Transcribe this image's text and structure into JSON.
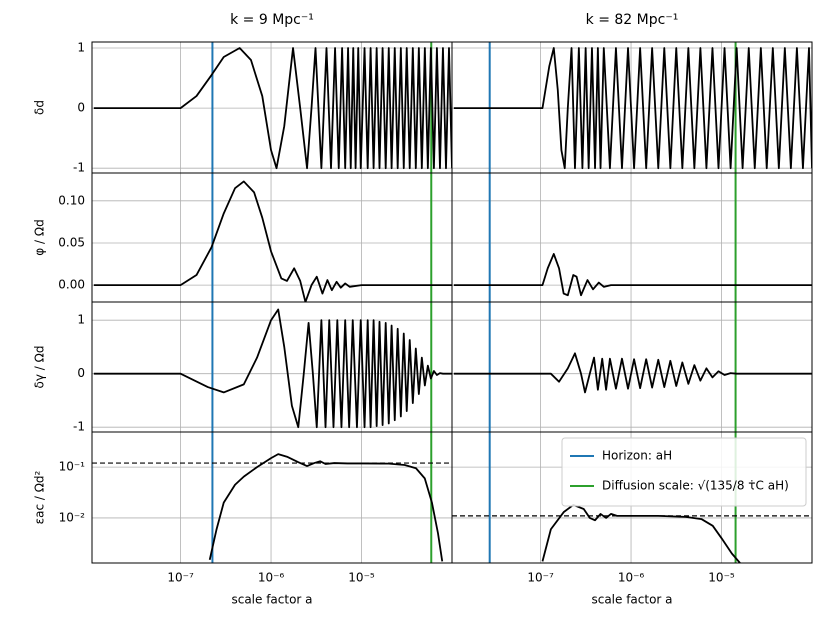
{
  "chart_data": [
    {
      "type": "line",
      "title": "k = 9 Mpc⁻¹",
      "ylabel": "δd",
      "log_x": true,
      "grid": true,
      "show_xtick_labels": false,
      "show_ytick_labels": true,
      "xlim": [
        1.05e-08,
        0.0001
      ],
      "ylim": [
        -1.08,
        1.1
      ],
      "xticks": [
        {
          "value": 1e-07,
          "label": "10⁻⁷"
        },
        {
          "value": 1e-06,
          "label": "10⁻⁶"
        },
        {
          "value": 1e-05,
          "label": "10⁻⁵"
        }
      ],
      "yticks": [
        -1,
        0,
        1
      ],
      "vlines": [
        {
          "value": 2.25e-07,
          "color": "#1f77b4"
        },
        {
          "value": 5.9e-05,
          "color": "#2ca02c"
        }
      ],
      "x": [
        1.1e-08,
        1e-07,
        1.5e-07,
        2.2e-07,
        3e-07,
        4.5e-07,
        6e-07,
        8e-07,
        1e-06,
        1.15e-06,
        1.4e-06,
        1.75e-06,
        2.1e-06,
        2.5e-06,
        2.8e-06,
        3.1e-06,
        3.6e-06,
        4.1e-06,
        4.6e-06,
        5.1e-06,
        5.6e-06,
        6.1e-06,
        6.6e-06,
        7.1e-06,
        7.6e-06,
        8.1e-06,
        8.6e-06,
        9.2e-06,
        9.8e-06,
        1.08e-05,
        1.17e-05,
        1.26e-05,
        1.36e-05,
        1.47e-05,
        1.58e-05,
        1.71e-05,
        1.85e-05,
        2e-05,
        2.15e-05,
        2.33e-05,
        2.51e-05,
        2.72e-05,
        2.93e-05,
        3.16e-05,
        3.41e-05,
        3.69e-05,
        3.98e-05,
        4.3e-05,
        4.64e-05,
        5.01e-05,
        5.41e-05,
        5.84e-05,
        6.31e-05,
        6.81e-05,
        7.36e-05,
        7.94e-05,
        8.58e-05,
        9.26e-05,
        0.0001
      ],
      "series": [
        {
          "color": "#000000",
          "values": [
            0,
            0,
            0.2,
            0.55,
            0.85,
            1,
            0.8,
            0.2,
            -0.7,
            -1,
            -0.3,
            1,
            0,
            -1,
            0,
            1,
            -1,
            1,
            -1,
            1,
            -1,
            1,
            -1,
            1,
            -1,
            1,
            -1,
            1,
            -1,
            1,
            -1,
            1,
            -1,
            1,
            -1,
            1,
            -1,
            1,
            -1,
            1,
            -1,
            1,
            -1,
            1,
            -1,
            1,
            -1,
            1,
            -1,
            1,
            -1,
            1,
            -1,
            1,
            -1,
            1,
            -1,
            1,
            -1
          ]
        }
      ]
    },
    {
      "type": "line",
      "title": "k = 82 Mpc⁻¹",
      "log_x": true,
      "grid": true,
      "show_xtick_labels": false,
      "show_ytick_labels": false,
      "xlim": [
        1.05e-08,
        0.0001
      ],
      "ylim": [
        -1.08,
        1.1
      ],
      "xticks": [
        {
          "value": 1e-07,
          "label": "10⁻⁷"
        },
        {
          "value": 1e-06,
          "label": "10⁻⁶"
        },
        {
          "value": 1e-05,
          "label": "10⁻⁵"
        }
      ],
      "yticks": [
        -1,
        0,
        1
      ],
      "vlines": [
        {
          "value": 2.74e-08,
          "color": "#1f77b4"
        },
        {
          "value": 1.43e-05,
          "color": "#2ca02c"
        }
      ],
      "x": [
        1.1e-08,
        1.05e-07,
        1.25e-07,
        1.4e-07,
        1.55e-07,
        1.7e-07,
        1.85e-07,
        2e-07,
        2.2e-07,
        2.4e-07,
        2.65e-07,
        2.9e-07,
        3.15e-07,
        3.4e-07,
        3.7e-07,
        4e-07,
        4.3e-07,
        4.6e-07,
        5e-07,
        5.84e-07,
        6.81e-07,
        7.94e-07,
        9.26e-07,
        1.08e-06,
        1.26e-06,
        1.47e-06,
        1.71e-06,
        2e-06,
        2.33e-06,
        2.72e-06,
        3.16e-06,
        3.69e-06,
        4.3e-06,
        5.01e-06,
        5.84e-06,
        6.81e-06,
        7.94e-06,
        9.26e-06,
        1.08e-05,
        1.26e-05,
        1.47e-05,
        1.71e-05,
        2e-05,
        2.33e-05,
        2.72e-05,
        3.16e-05,
        3.69e-05,
        4.3e-05,
        5.01e-05,
        5.84e-05,
        6.81e-05,
        7.94e-05,
        9.26e-05,
        0.0001
      ],
      "series": [
        {
          "color": "#000000",
          "values": [
            0,
            0,
            0.7,
            1,
            0.3,
            -0.7,
            -1,
            0,
            1,
            -1,
            1,
            -1,
            1,
            -1,
            1,
            -1,
            1,
            -1,
            1,
            -1,
            1,
            -1,
            1,
            -1,
            1,
            -1,
            1,
            -1,
            1,
            -1,
            1,
            -1,
            1,
            -1,
            1,
            -1,
            1,
            -1,
            1,
            -1,
            1,
            -1,
            1,
            -1,
            1,
            -1,
            1,
            -1,
            1,
            -1,
            1,
            -1,
            1,
            -1
          ]
        }
      ]
    },
    {
      "type": "line",
      "ylabel": "φ / Ωd",
      "log_x": true,
      "grid": true,
      "show_xtick_labels": false,
      "show_ytick_labels": true,
      "xlim": [
        1.05e-08,
        0.0001
      ],
      "ylim": [
        -0.02,
        0.133
      ],
      "xticks": [
        {
          "value": 1e-07,
          "label": "10⁻⁷"
        },
        {
          "value": 1e-06,
          "label": "10⁻⁶"
        },
        {
          "value": 1e-05,
          "label": "10⁻⁵"
        }
      ],
      "yticks": [
        {
          "value": 0,
          "label": "0.00"
        },
        {
          "value": 0.05,
          "label": "0.05"
        },
        {
          "value": 0.1,
          "label": "0.10"
        }
      ],
      "vlines": [
        {
          "value": 2.25e-07,
          "color": "#1f77b4"
        },
        {
          "value": 5.9e-05,
          "color": "#2ca02c"
        }
      ],
      "x": [
        1.1e-08,
        1e-07,
        1.5e-07,
        2.2e-07,
        3e-07,
        4e-07,
        5e-07,
        6.5e-07,
        8e-07,
        1e-06,
        1.3e-06,
        1.5e-06,
        1.8e-06,
        2.1e-06,
        2.4e-06,
        2.8e-06,
        3.2e-06,
        3.7e-06,
        4.2e-06,
        4.7e-06,
        5.3e-06,
        5.9e-06,
        6.6e-06,
        7.4e-06,
        1e-05,
        0.0001
      ],
      "series": [
        {
          "color": "#000000",
          "values": [
            0,
            0,
            0.012,
            0.045,
            0.085,
            0.115,
            0.123,
            0.11,
            0.08,
            0.04,
            0.008,
            0.005,
            0.02,
            0.005,
            -0.02,
            0,
            0.01,
            -0.01,
            0.006,
            -0.006,
            0.004,
            -0.003,
            0.002,
            -0.002,
            0,
            0
          ]
        }
      ]
    },
    {
      "type": "line",
      "log_x": true,
      "grid": true,
      "show_xtick_labels": false,
      "show_ytick_labels": false,
      "xlim": [
        1.05e-08,
        0.0001
      ],
      "ylim": [
        -0.02,
        0.133
      ],
      "xticks": [
        {
          "value": 1e-07,
          "label": "10⁻⁷"
        },
        {
          "value": 1e-06,
          "label": "10⁻⁶"
        },
        {
          "value": 1e-05,
          "label": "10⁻⁵"
        }
      ],
      "yticks": [
        {
          "value": 0,
          "label": "0.00"
        },
        {
          "value": 0.05,
          "label": "0.05"
        },
        {
          "value": 0.1,
          "label": "0.10"
        }
      ],
      "vlines": [
        {
          "value": 2.74e-08,
          "color": "#1f77b4"
        },
        {
          "value": 1.43e-05,
          "color": "#2ca02c"
        }
      ],
      "x": [
        1.1e-08,
        1.05e-07,
        1.2e-07,
        1.4e-07,
        1.6e-07,
        1.8e-07,
        2e-07,
        2.3e-07,
        2.5e-07,
        2.8e-07,
        3.3e-07,
        3.8e-07,
        4.4e-07,
        5e-07,
        6e-07,
        0.0001
      ],
      "series": [
        {
          "color": "#000000",
          "values": [
            0,
            0,
            0.02,
            0.037,
            0.02,
            -0.01,
            -0.012,
            0.012,
            0.01,
            -0.012,
            0.006,
            -0.005,
            0.003,
            -0.002,
            0,
            0
          ]
        }
      ]
    },
    {
      "type": "line",
      "ylabel": "δγ / Ωd",
      "log_x": true,
      "grid": true,
      "show_xtick_labels": false,
      "show_ytick_labels": true,
      "xlim": [
        1.05e-08,
        0.0001
      ],
      "ylim": [
        -1.09,
        1.34
      ],
      "xticks": [
        {
          "value": 1e-07,
          "label": "10⁻⁷"
        },
        {
          "value": 1e-06,
          "label": "10⁻⁶"
        },
        {
          "value": 1e-05,
          "label": "10⁻⁵"
        }
      ],
      "yticks": [
        -1,
        0,
        1
      ],
      "vlines": [
        {
          "value": 2.25e-07,
          "color": "#1f77b4"
        },
        {
          "value": 5.9e-05,
          "color": "#2ca02c"
        }
      ],
      "x": [
        1.1e-08,
        1e-07,
        2e-07,
        3e-07,
        5e-07,
        7e-07,
        1e-06,
        1.2e-06,
        1.4e-06,
        1.7e-06,
        2e-06,
        2.3e-06,
        2.6e-06,
        2.9e-06,
        3.2e-06,
        3.6e-06,
        4e-06,
        4.4e-06,
        4.9e-06,
        5.4e-06,
        6e-06,
        6.6e-06,
        7.3e-06,
        8e-06,
        8.9e-06,
        9.8e-06,
        1.08e-05,
        1.17e-05,
        1.26e-05,
        1.36e-05,
        1.47e-05,
        1.58e-05,
        1.71e-05,
        1.85e-05,
        2e-05,
        2.15e-05,
        2.33e-05,
        2.51e-05,
        2.72e-05,
        2.93e-05,
        3.16e-05,
        3.41e-05,
        3.69e-05,
        3.98e-05,
        4.3e-05,
        4.64e-05,
        5.01e-05,
        5.41e-05,
        5.84e-05,
        6.31e-05,
        6.81e-05,
        7.36e-05,
        7.94e-05,
        8.58e-05,
        9.26e-05,
        0.0001
      ],
      "series": [
        {
          "color": "#000000",
          "values": [
            0,
            0,
            -0.25,
            -0.35,
            -0.2,
            0.3,
            1.0,
            1.2,
            0.5,
            -0.6,
            -1,
            0,
            0.95,
            0,
            -1,
            1,
            -1,
            1,
            -1,
            1,
            -1,
            1,
            -1,
            1,
            -1,
            1,
            -1,
            1,
            -1,
            1,
            -0.98,
            0.97,
            -0.96,
            0.95,
            -0.93,
            0.9,
            -0.87,
            0.84,
            -0.8,
            0.75,
            -0.7,
            0.63,
            -0.55,
            0.47,
            -0.38,
            0.3,
            -0.22,
            0.15,
            -0.09,
            0.05,
            -0.025,
            0.01,
            0,
            0,
            0,
            0
          ]
        }
      ]
    },
    {
      "type": "line",
      "log_x": true,
      "grid": true,
      "show_xtick_labels": false,
      "show_ytick_labels": false,
      "xlim": [
        1.05e-08,
        0.0001
      ],
      "ylim": [
        -1.09,
        1.34
      ],
      "xticks": [
        {
          "value": 1e-07,
          "label": "10⁻⁷"
        },
        {
          "value": 1e-06,
          "label": "10⁻⁶"
        },
        {
          "value": 1e-05,
          "label": "10⁻⁵"
        }
      ],
      "yticks": [
        -1,
        0,
        1
      ],
      "vlines": [
        {
          "value": 2.74e-08,
          "color": "#1f77b4"
        },
        {
          "value": 1.43e-05,
          "color": "#2ca02c"
        }
      ],
      "x": [
        1.1e-08,
        1.3e-07,
        1.6e-07,
        2e-07,
        2.4e-07,
        2.8e-07,
        3.1e-07,
        3.5e-07,
        3.9e-07,
        4.3e-07,
        4.8e-07,
        5.3e-07,
        5.84e-07,
        6.81e-07,
        7.94e-07,
        9.26e-07,
        1.08e-06,
        1.26e-06,
        1.47e-06,
        1.71e-06,
        2e-06,
        2.33e-06,
        2.72e-06,
        3.16e-06,
        3.69e-06,
        4.3e-06,
        5.01e-06,
        5.84e-06,
        6.81e-06,
        7.94e-06,
        9.26e-06,
        1.08e-05,
        1.26e-05,
        1.47e-05,
        0.0001
      ],
      "series": [
        {
          "color": "#000000",
          "values": [
            0,
            0,
            -0.15,
            0.1,
            0.38,
            0,
            -0.35,
            0,
            0.3,
            -0.3,
            0.28,
            -0.3,
            0.28,
            -0.28,
            0.28,
            -0.28,
            0.27,
            -0.27,
            0.27,
            -0.26,
            0.26,
            -0.25,
            0.24,
            -0.23,
            0.21,
            -0.19,
            0.16,
            -0.13,
            0.1,
            -0.07,
            0.045,
            -0.025,
            0.01,
            0,
            0
          ]
        }
      ]
    },
    {
      "type": "line",
      "ylabel": "εac / Ωd²",
      "xlabel": "scale factor a",
      "log_x": true,
      "log_y": true,
      "grid": true,
      "show_xtick_labels": true,
      "show_ytick_labels": true,
      "xlim": [
        1.05e-08,
        0.0001
      ],
      "ylim": [
        0.0013,
        0.49
      ],
      "xticks": [
        {
          "value": 1e-07,
          "label": "10⁻⁷"
        },
        {
          "value": 1e-06,
          "label": "10⁻⁶"
        },
        {
          "value": 1e-05,
          "label": "10⁻⁵"
        }
      ],
      "yticks": [
        {
          "value": 0.01,
          "label": "10⁻²"
        },
        {
          "value": 0.1,
          "label": "10⁻¹"
        }
      ],
      "vlines": [
        {
          "value": 2.25e-07,
          "color": "#1f77b4"
        },
        {
          "value": 5.9e-05,
          "color": "#2ca02c"
        }
      ],
      "hline": 0.12,
      "x": [
        2.1e-07,
        2.5e-07,
        3e-07,
        4e-07,
        5e-07,
        7e-07,
        1e-06,
        1.2e-06,
        1.5e-06,
        2e-06,
        2.5e-06,
        3e-06,
        3.5e-06,
        4e-06,
        5e-06,
        7e-06,
        1e-05,
        2e-05,
        3e-05,
        4e-05,
        5e-05,
        6e-05,
        7e-05,
        7.8e-05
      ],
      "series": [
        {
          "color": "#000000",
          "values": [
            0.0015,
            0.006,
            0.02,
            0.045,
            0.065,
            0.1,
            0.15,
            0.18,
            0.16,
            0.125,
            0.105,
            0.12,
            0.13,
            0.115,
            0.12,
            0.118,
            0.118,
            0.117,
            0.11,
            0.095,
            0.06,
            0.02,
            0.005,
            0.0014
          ]
        }
      ]
    },
    {
      "type": "line",
      "xlabel": "scale factor a",
      "log_x": true,
      "log_y": true,
      "grid": true,
      "show_xtick_labels": true,
      "show_ytick_labels": false,
      "legend": "upper right",
      "xlim": [
        1.05e-08,
        0.0001
      ],
      "ylim": [
        0.0013,
        0.49
      ],
      "xticks": [
        {
          "value": 1e-07,
          "label": "10⁻⁷"
        },
        {
          "value": 1e-06,
          "label": "10⁻⁶"
        },
        {
          "value": 1e-05,
          "label": "10⁻⁵"
        }
      ],
      "yticks": [
        {
          "value": 0.01,
          "label": "10⁻²"
        },
        {
          "value": 0.1,
          "label": "10⁻¹"
        }
      ],
      "vlines": [
        {
          "value": 2.74e-08,
          "color": "#1f77b4",
          "name": "Horizon: aH"
        },
        {
          "value": 1.43e-05,
          "color": "#2ca02c",
          "name": "Diffusion scale: √(135/8 τ̇C aH)"
        }
      ],
      "hline": 0.011,
      "x": [
        1.05e-07,
        1.3e-07,
        1.8e-07,
        2.3e-07,
        3e-07,
        3.5e-07,
        4e-07,
        4.6e-07,
        5.3e-07,
        6e-07,
        7e-07,
        1e-06,
        2e-06,
        4e-06,
        6e-06,
        8e-06,
        1e-05,
        1.3e-05,
        1.6e-05
      ],
      "series": [
        {
          "color": "#000000",
          "values": [
            0.0014,
            0.006,
            0.013,
            0.018,
            0.015,
            0.01,
            0.009,
            0.012,
            0.01,
            0.012,
            0.011,
            0.011,
            0.011,
            0.0105,
            0.0095,
            0.007,
            0.004,
            0.002,
            0.0013
          ]
        }
      ]
    }
  ]
}
